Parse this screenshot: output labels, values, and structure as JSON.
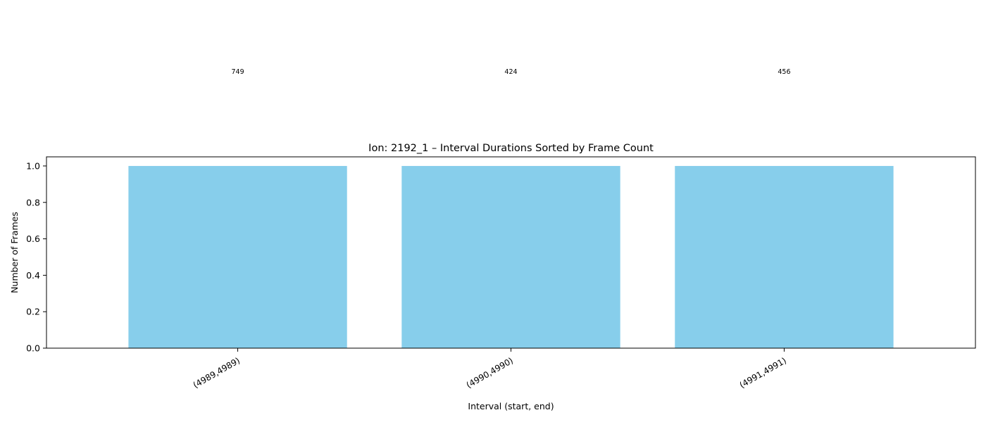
{
  "chart_data": {
    "type": "bar",
    "title": "Ion: 2192_1 – Interval Durations Sorted by Frame Count",
    "xlabel": "Interval (start, end)",
    "ylabel": "Number of Frames",
    "categories": [
      "(4989,4989)",
      "(4990,4990)",
      "(4991,4991)"
    ],
    "values": [
      1.0,
      1.0,
      1.0
    ],
    "annotations": [
      "749",
      "424",
      "456"
    ],
    "ylim": [
      0,
      1.05
    ],
    "yticks": [
      "0.0",
      "0.2",
      "0.4",
      "0.6",
      "0.8",
      "1.0"
    ],
    "grid": false,
    "bar_color": "#87ceeb"
  }
}
